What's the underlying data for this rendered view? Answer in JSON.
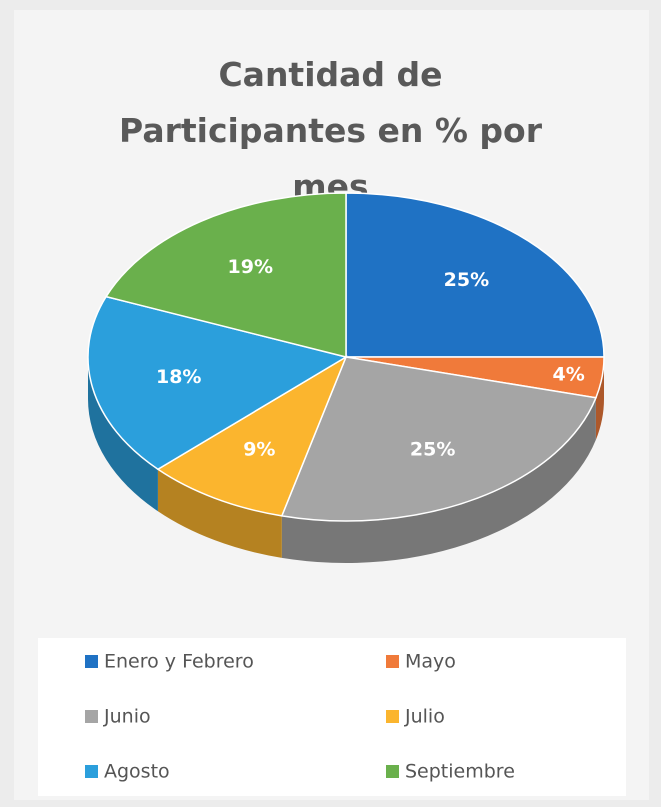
{
  "chart_data": {
    "type": "pie",
    "title": "Cantidad de Participantes en % por mes",
    "categories": [
      "Enero y Febrero",
      "Mayo",
      "Junio",
      "Julio",
      "Agosto",
      "Septiembre"
    ],
    "values": [
      25,
      4,
      25,
      9,
      18,
      19
    ],
    "value_labels": [
      "25%",
      "4%",
      "25%",
      "9%",
      "18%",
      "19%"
    ],
    "colors": [
      "#1f72c4",
      "#f07a3a",
      "#a5a5a5",
      "#fbb52e",
      "#2b9fdc",
      "#6ab04c"
    ],
    "legend": "bottom"
  }
}
